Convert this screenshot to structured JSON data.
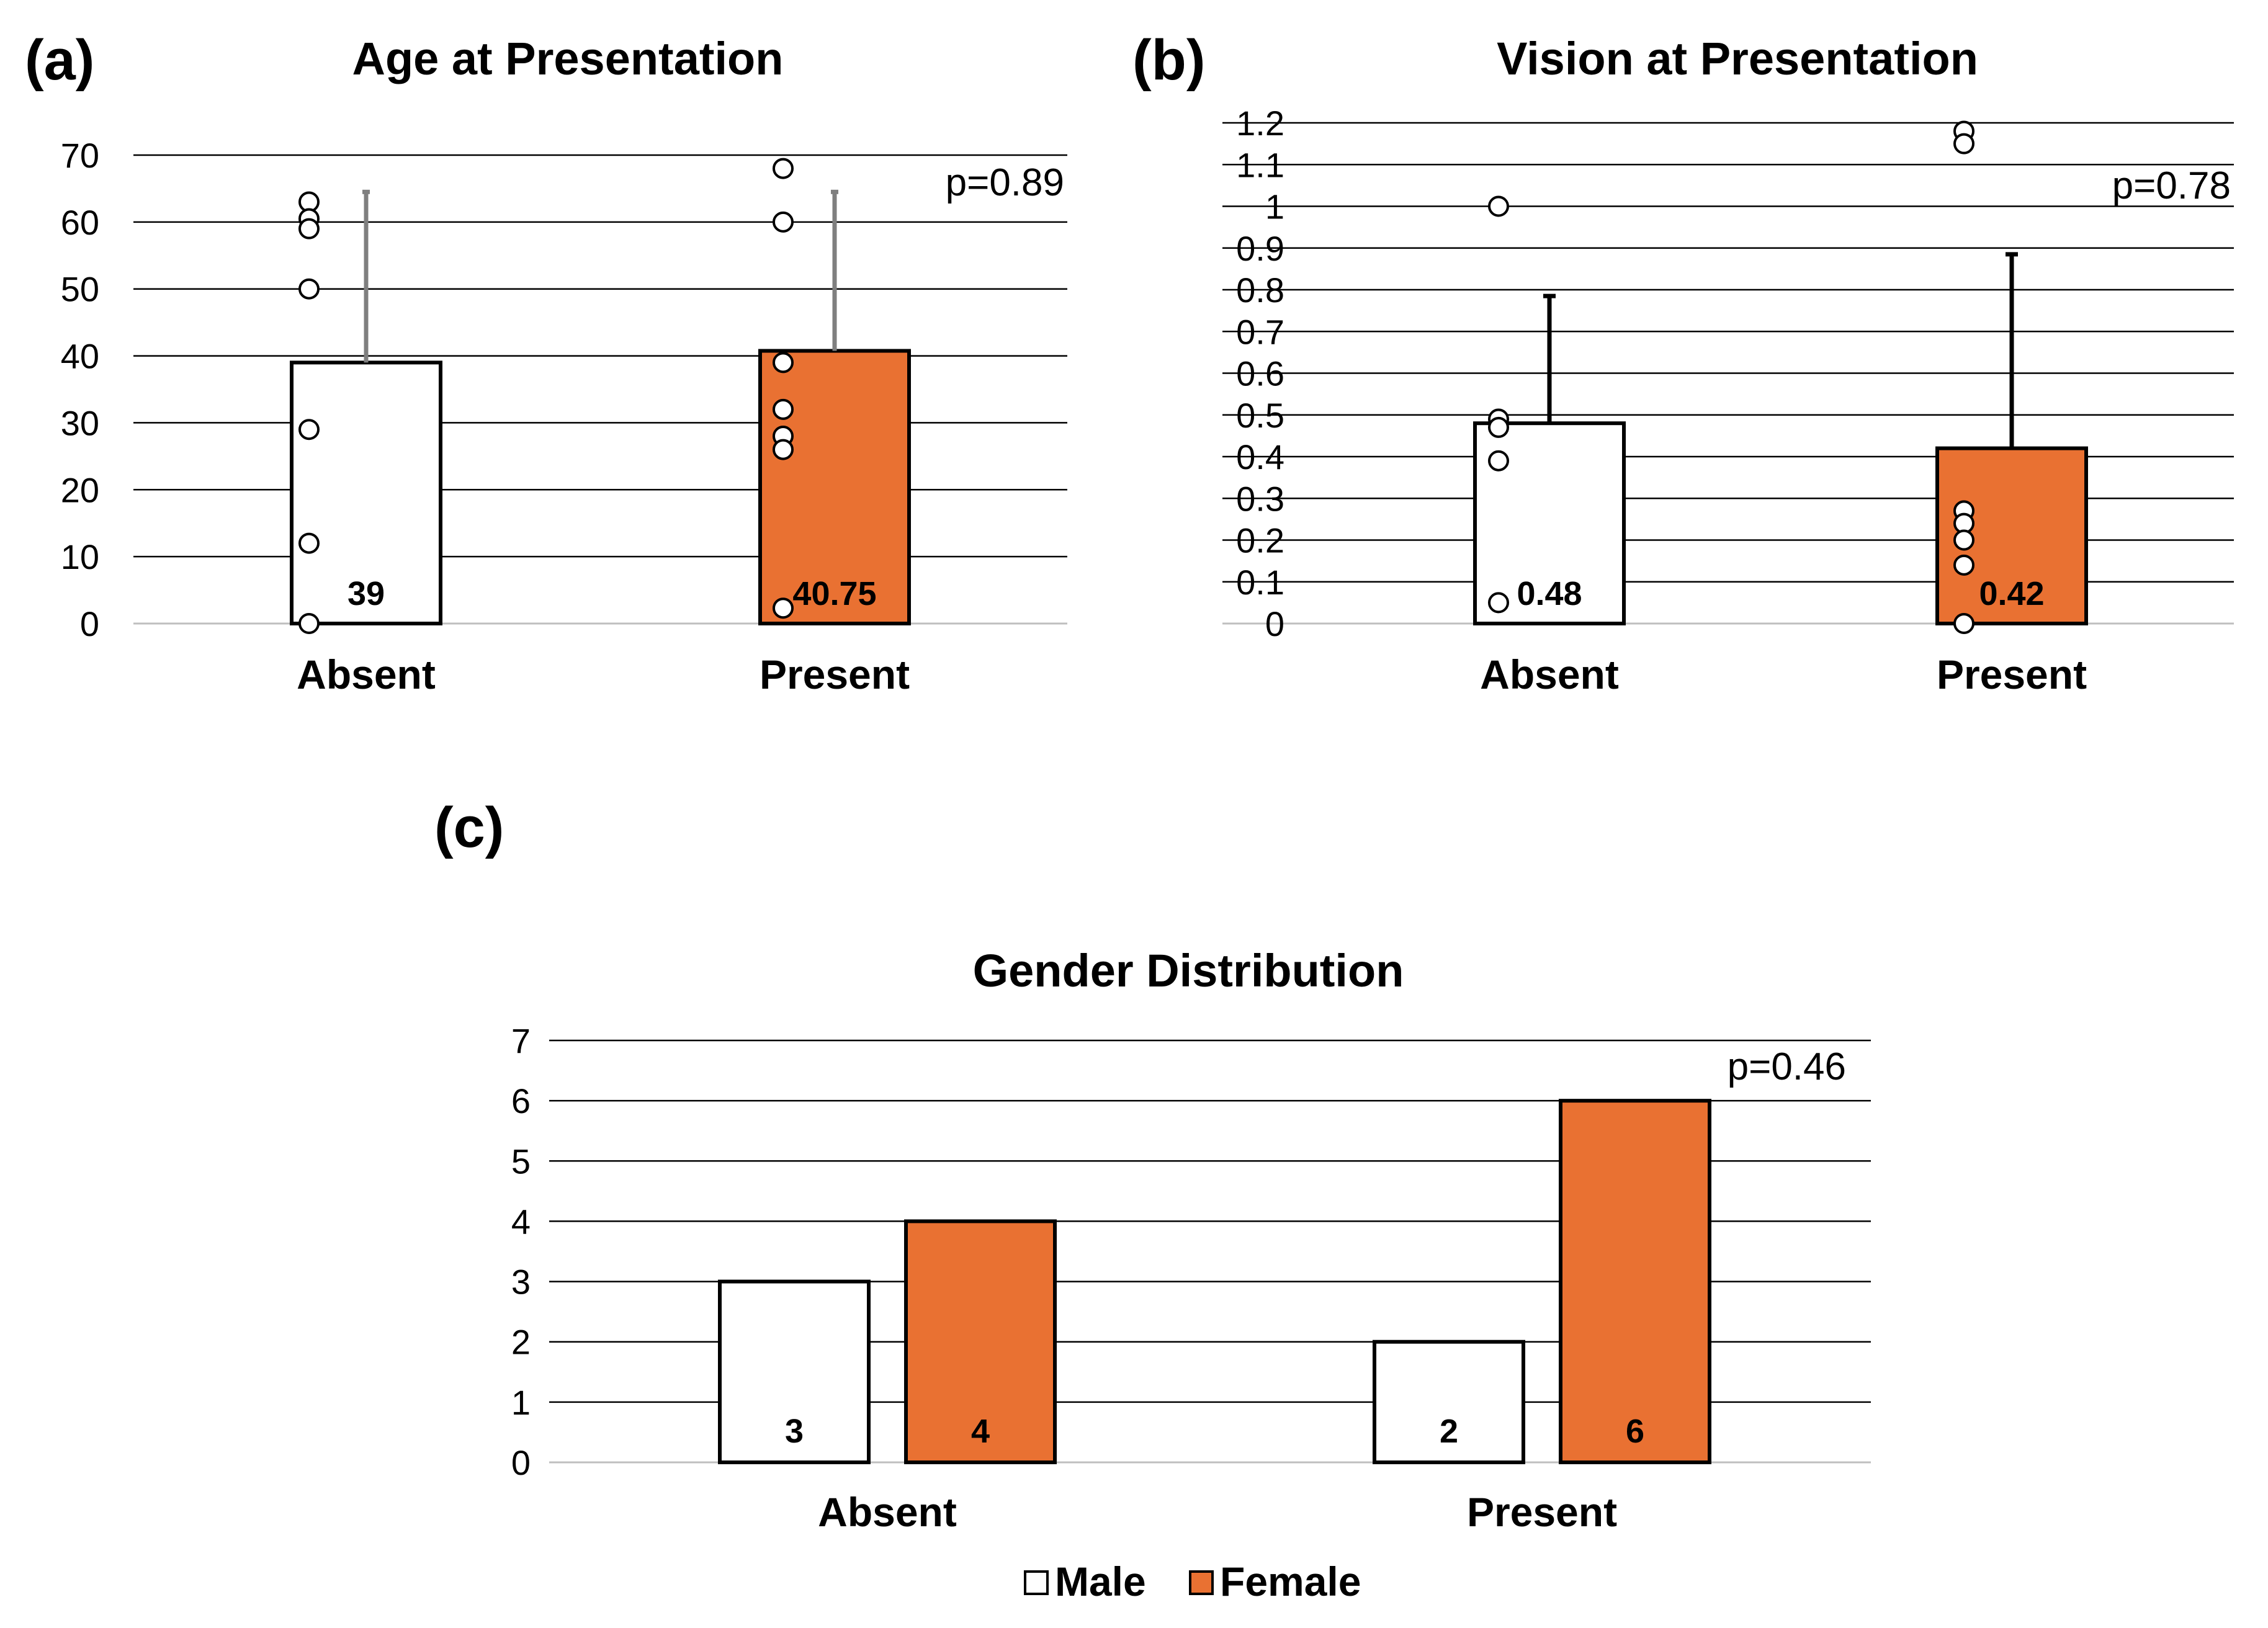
{
  "panels": {
    "a": {
      "label": "(a)"
    },
    "b": {
      "label": "(b)"
    },
    "c": {
      "label": "(c)"
    }
  },
  "colors": {
    "absent": "#ffffff",
    "present": "#e97132",
    "male": "#ffffff",
    "female": "#e97132",
    "error_a": "#7f7f7f",
    "error_b": "#000000"
  },
  "chart_data": [
    {
      "id": "a",
      "type": "bar",
      "title": "Age at Presentation",
      "categories": [
        "Absent",
        "Present"
      ],
      "values": [
        39,
        40.75
      ],
      "value_labels": [
        "39",
        "40.75"
      ],
      "error_upper": [
        64.5,
        64.5
      ],
      "points": [
        [
          63,
          60.5,
          59,
          50,
          29,
          12,
          0
        ],
        [
          68,
          60,
          39,
          32,
          28,
          26,
          2.3
        ]
      ],
      "ylim": [
        0,
        70
      ],
      "yticks": [
        "0",
        "10",
        "20",
        "30",
        "40",
        "50",
        "60",
        "70"
      ],
      "ytick_values": [
        0,
        10,
        20,
        30,
        40,
        50,
        60,
        70
      ],
      "p_value": "p=0.89",
      "xlabel": "",
      "ylabel": ""
    },
    {
      "id": "b",
      "type": "bar",
      "title": "Vision at Presentation",
      "categories": [
        "Absent",
        "Present"
      ],
      "values": [
        0.48,
        0.42
      ],
      "value_labels": [
        "0.48",
        "0.42"
      ],
      "error_upper": [
        0.785,
        0.885
      ],
      "points": [
        [
          1.0,
          0.49,
          0.47,
          0.39,
          0.05
        ],
        [
          1.18,
          1.15,
          0.27,
          0.24,
          0.2,
          0.14,
          0.0
        ]
      ],
      "ylim": [
        0,
        1.2
      ],
      "yticks": [
        "0",
        "0.1",
        "0.2",
        "0.3",
        "0.4",
        "0.5",
        "0.6",
        "0.7",
        "0.8",
        "0.9",
        "1",
        "1.1",
        "1.2"
      ],
      "ytick_values": [
        0,
        0.1,
        0.2,
        0.3,
        0.4,
        0.5,
        0.6,
        0.7,
        0.8,
        0.9,
        1.0,
        1.1,
        1.2
      ],
      "p_value": "p=0.78",
      "xlabel": "",
      "ylabel": ""
    },
    {
      "id": "c",
      "type": "bar",
      "title": "Gender Distribution",
      "categories": [
        "Absent",
        "Present"
      ],
      "series": [
        {
          "name": "Male",
          "values": [
            3,
            2
          ],
          "value_labels": [
            "3",
            "2"
          ]
        },
        {
          "name": "Female",
          "values": [
            4,
            6
          ],
          "value_labels": [
            "4",
            "6"
          ]
        }
      ],
      "ylim": [
        0,
        7
      ],
      "yticks": [
        "0",
        "1",
        "2",
        "3",
        "4",
        "5",
        "6",
        "7"
      ],
      "ytick_values": [
        0,
        1,
        2,
        3,
        4,
        5,
        6,
        7
      ],
      "p_value": "p=0.46",
      "legend": [
        "Male",
        "Female"
      ],
      "xlabel": "",
      "ylabel": ""
    }
  ]
}
